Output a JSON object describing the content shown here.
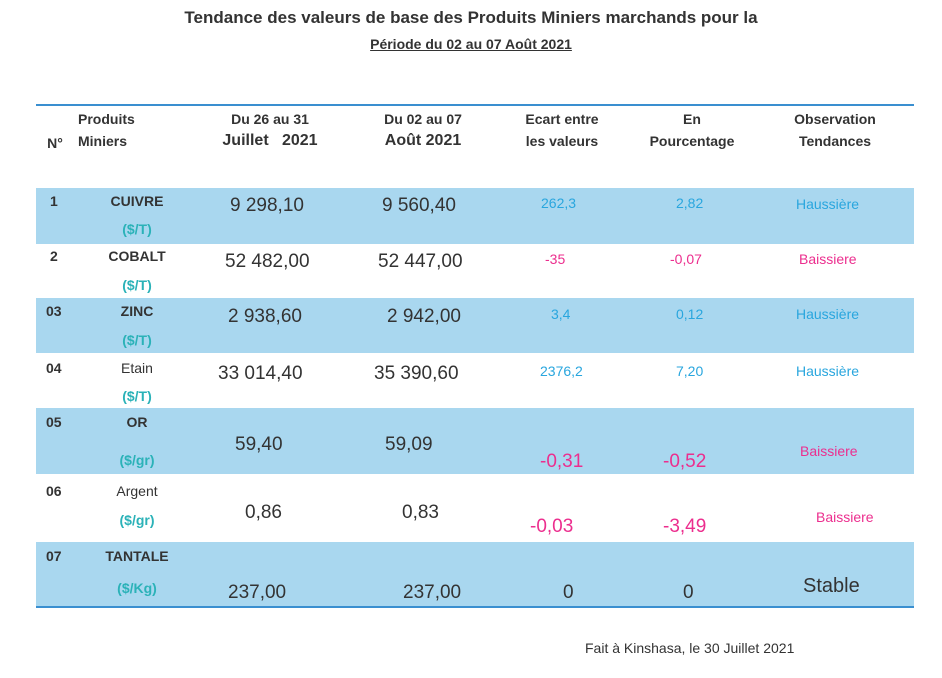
{
  "title": "Tendance des valeurs de base des Produits Miniers marchands pour la",
  "subtitle": "Période du 02 au 07 Août 2021",
  "headers": {
    "num": "N°",
    "product_l1": "Produits",
    "product_l2": "Miniers",
    "prev_l1": "Du 26 au 31",
    "prev_l2": "Juillet   2021",
    "curr_l1": "Du 02 au 07",
    "curr_l2": "Août 2021",
    "diff_l1": "Ecart entre",
    "diff_l2": "les valeurs",
    "pct_l1": "En",
    "pct_l2": "Pourcentage",
    "obs_l1": "Observation",
    "obs_l2": "Tendances"
  },
  "rows": [
    {
      "num": "1",
      "product": "CUIVRE",
      "unit": "($/T)",
      "prev": "9 298,10",
      "curr": "9 560,40",
      "diff": "262,3",
      "pct": "2,82",
      "trend": "Haussière"
    },
    {
      "num": "2",
      "product": "COBALT",
      "unit": "($/T)",
      "prev": "52 482,00",
      "curr": "52 447,00",
      "diff": "-35",
      "pct": "-0,07",
      "trend": "Baissiere"
    },
    {
      "num": "03",
      "product": "ZINC",
      "unit": "($/T)",
      "prev": "2 938,60",
      "curr": "2 942,00",
      "diff": "3,4",
      "pct": "0,12",
      "trend": "Haussière"
    },
    {
      "num": "04",
      "product": "Etain",
      "unit": "($/T)",
      "prev": "33 014,40",
      "curr": "35 390,60",
      "diff": "2376,2",
      "pct": "7,20",
      "trend": "Haussière"
    },
    {
      "num": "05",
      "product": "OR",
      "unit": "($/gr)",
      "prev": "59,40",
      "curr": "59,09",
      "diff": "-0,31",
      "pct": "-0,52",
      "trend": "Baissiere"
    },
    {
      "num": "06",
      "product": "Argent",
      "unit": "($/gr)",
      "prev": "0,86",
      "curr": "0,83",
      "diff": "-0,03",
      "pct": "-3,49",
      "trend": "Baissiere"
    },
    {
      "num": "07",
      "product": "TANTALE",
      "unit": "($/Kg)",
      "prev": "237,00",
      "curr": "237,00",
      "diff": "0",
      "pct": "0",
      "trend": "Stable"
    }
  ],
  "footer": "Fait à Kinshasa, le 30 Juillet 2021",
  "colors": {
    "band": "#a9d7ef",
    "rule": "#3a8fd0",
    "rise": "#29a6de",
    "fall": "#ec2e8e",
    "unit": "#2bb2b8"
  }
}
